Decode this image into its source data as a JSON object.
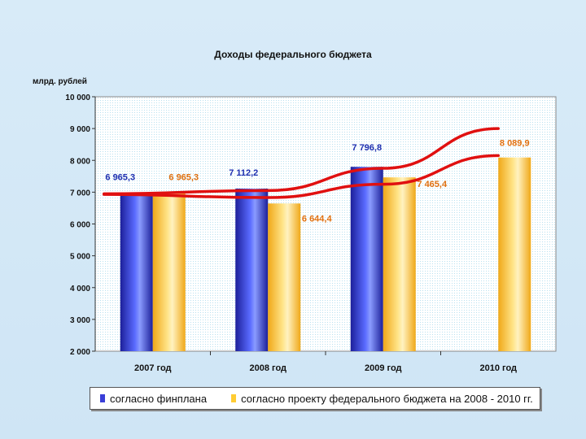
{
  "chart_data": {
    "type": "bar",
    "title": "Доходы федерального бюджета",
    "ylabel": "млрд. рублей",
    "xlabel": "",
    "ylim": [
      2000,
      10000
    ],
    "ytick_step": 1000,
    "ytick_labels": [
      "2 000",
      "3 000",
      "4 000",
      "5 000",
      "6 000",
      "7 000",
      "8 000",
      "9 000",
      "10 000"
    ],
    "categories": [
      "2007 год",
      "2008 год",
      "2009 год",
      "2010 год"
    ],
    "series": [
      {
        "name": "согласно финплана",
        "color": "#3a3fd8",
        "label_color": "#1f2fb0",
        "values": [
          6965.3,
          7112.2,
          7796.8,
          null
        ],
        "labels": [
          "6 965,3",
          "7 112,2",
          "7 796,8",
          ""
        ]
      },
      {
        "name": "согласно проекту федерального бюджета на 2008 - 2010 гг.",
        "color": "#ffcc33",
        "label_color": "#e07010",
        "values": [
          6965.3,
          6644.4,
          7465.4,
          8089.9
        ],
        "labels": [
          "6 965,3",
          "6 644,4",
          "7 465,4",
          "8 089,9"
        ]
      }
    ],
    "trendlines": [
      {
        "name": "trend-upper",
        "color": "#e01010",
        "values": [
          6950,
          7050,
          7750,
          9000
        ]
      },
      {
        "name": "trend-lower",
        "color": "#e01010",
        "values": [
          6930,
          6830,
          7250,
          8150
        ]
      }
    ],
    "legend_position": "bottom",
    "grid": false
  }
}
